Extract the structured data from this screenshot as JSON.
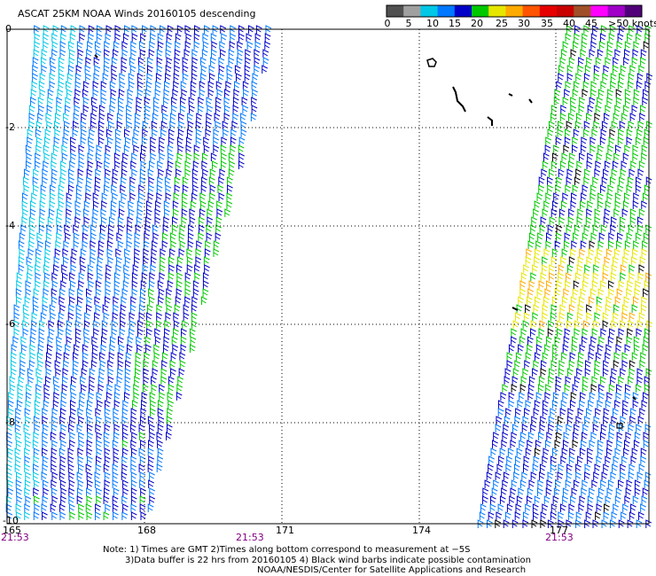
{
  "title": "ASCAT 25KM NOAA Winds 20160105 descending",
  "legend": {
    "labels": [
      "0",
      "5",
      "10",
      "15",
      "20",
      "25",
      "30",
      "35",
      "40",
      "45",
      ">50 knots"
    ],
    "colors": [
      "#505050",
      "#a0a0a0",
      "#00c8e6",
      "#0078ff",
      "#0000c8",
      "#00c800",
      "#e6e600",
      "#ffaa00",
      "#ff5500",
      "#e60000",
      "#c80000",
      "#a05028",
      "#ff00ff",
      "#a000c8",
      "#500078"
    ]
  },
  "axes": {
    "lat_labels": [
      "0",
      "-2",
      "-4",
      "-6",
      "-8",
      "-10"
    ],
    "lon_labels": [
      "165",
      "168",
      "171",
      "174",
      "177"
    ]
  },
  "times": [
    "21:53",
    "21:53",
    "21:53"
  ],
  "notes": [
    "Note: 1) Times are GMT 2)Times along bottom correspond to measurement at −5S",
    "3)Data buffer is 22 hrs from 20160105 4) Black wind barbs indicate possible contamination",
    "NOAA/NESDIS/Center for Satellite Applications and Research"
  ]
}
